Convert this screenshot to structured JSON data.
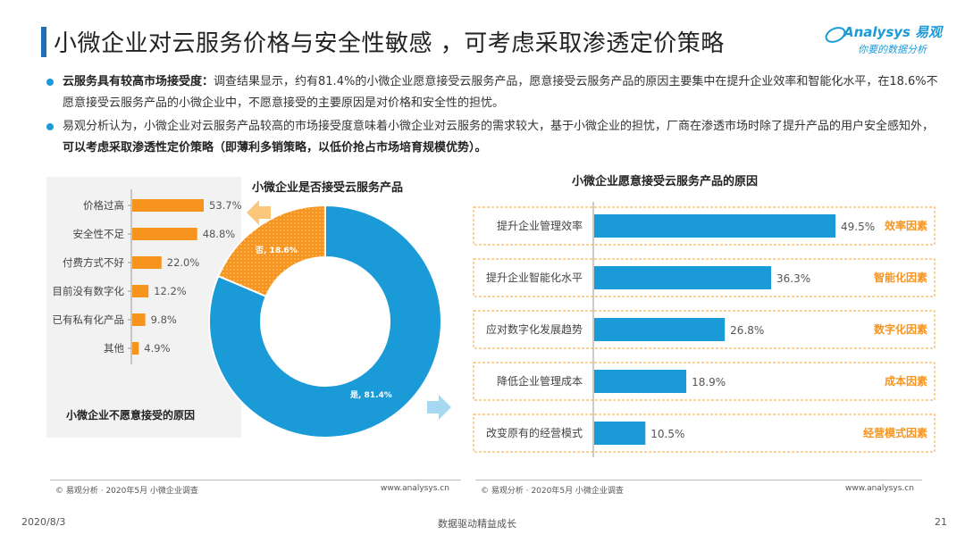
{
  "header": {
    "title": "小微企业对云服务价格与安全性敏感 ，可考虑采取渗透定价策略",
    "logo_brand": "Analysys 易观",
    "logo_tag": "你要的数据分析"
  },
  "bullets": [
    {
      "lead": "云服务具有较高市场接受度：",
      "text": "调查结果显示，约有81.4%的小微企业愿意接受云服务产品，愿意接受云服务产品的原因主要集中在提升企业效率和智能化水平，在18.6%不愿意接受云服务产品的小微企业中，不愿意接受的主要原因是对价格和安全性的担忧。"
    },
    {
      "text": "易观分析认为，小微企业对云服务产品较高的市场接受度意味着小微企业对云服务的需求较大，基于小微企业的担忧，厂商在渗透市场时除了提升产品的用户安全感知外，",
      "emphasis": "可以考虑采取渗透性定价策略（即薄利多销策略，以低价抢占市场培育规模优势）。"
    }
  ],
  "colors": {
    "orange": "#f7941d",
    "blue": "#1b9ad8",
    "arrow_orange": "#fbc77b",
    "arrow_blue": "#a6d8f2",
    "dashed": "#f7a534",
    "title_bar": "#1f6fb8"
  },
  "chart_data": [
    {
      "type": "bar",
      "orientation": "horizontal",
      "caption": "小微企业不愿意接受的原因",
      "categories": [
        "价格过高",
        "安全性不足",
        "付费方式不好",
        "目前没有数字化",
        "已有私有化产品",
        "其他"
      ],
      "values": [
        53.7,
        48.8,
        22.0,
        12.2,
        9.8,
        4.9
      ],
      "value_labels": [
        "53.7%",
        "48.8%",
        "22.0%",
        "12.2%",
        "9.8%",
        "4.9%"
      ],
      "xlim": [
        0,
        60
      ]
    },
    {
      "type": "pie",
      "donut": true,
      "title": "小微企业是否接受云服务产品",
      "slices": [
        {
          "label": "是, 81.4%",
          "value": 81.4
        },
        {
          "label": "否, 18.6%",
          "value": 18.6
        }
      ]
    },
    {
      "type": "bar",
      "orientation": "horizontal",
      "title": "小微企业愿意接受云服务产品的原因",
      "categories": [
        "提升企业管理效率",
        "提升企业智能化水平",
        "应对数字化发展趋势",
        "降低企业管理成本",
        "改变原有的经营模式"
      ],
      "values": [
        49.5,
        36.3,
        26.8,
        18.9,
        10.5
      ],
      "value_labels": [
        "49.5%",
        "36.3%",
        "26.8%",
        "18.9%",
        "10.5%"
      ],
      "factors": [
        "效率因素",
        "智能化因素",
        "数字化因素",
        "成本因素",
        "经营模式因素"
      ],
      "xlim": [
        0,
        60
      ]
    }
  ],
  "sources": {
    "left": "© 易观分析 · 2020年5月 小微企业调查",
    "left_site": "www.analysys.cn",
    "right": "© 易观分析 · 2020年5月 小微企业调查",
    "right_site": "www.analysys.cn"
  },
  "footer": {
    "date": "2020/8/3",
    "center": "数据驱动精益成长",
    "page": "21"
  }
}
